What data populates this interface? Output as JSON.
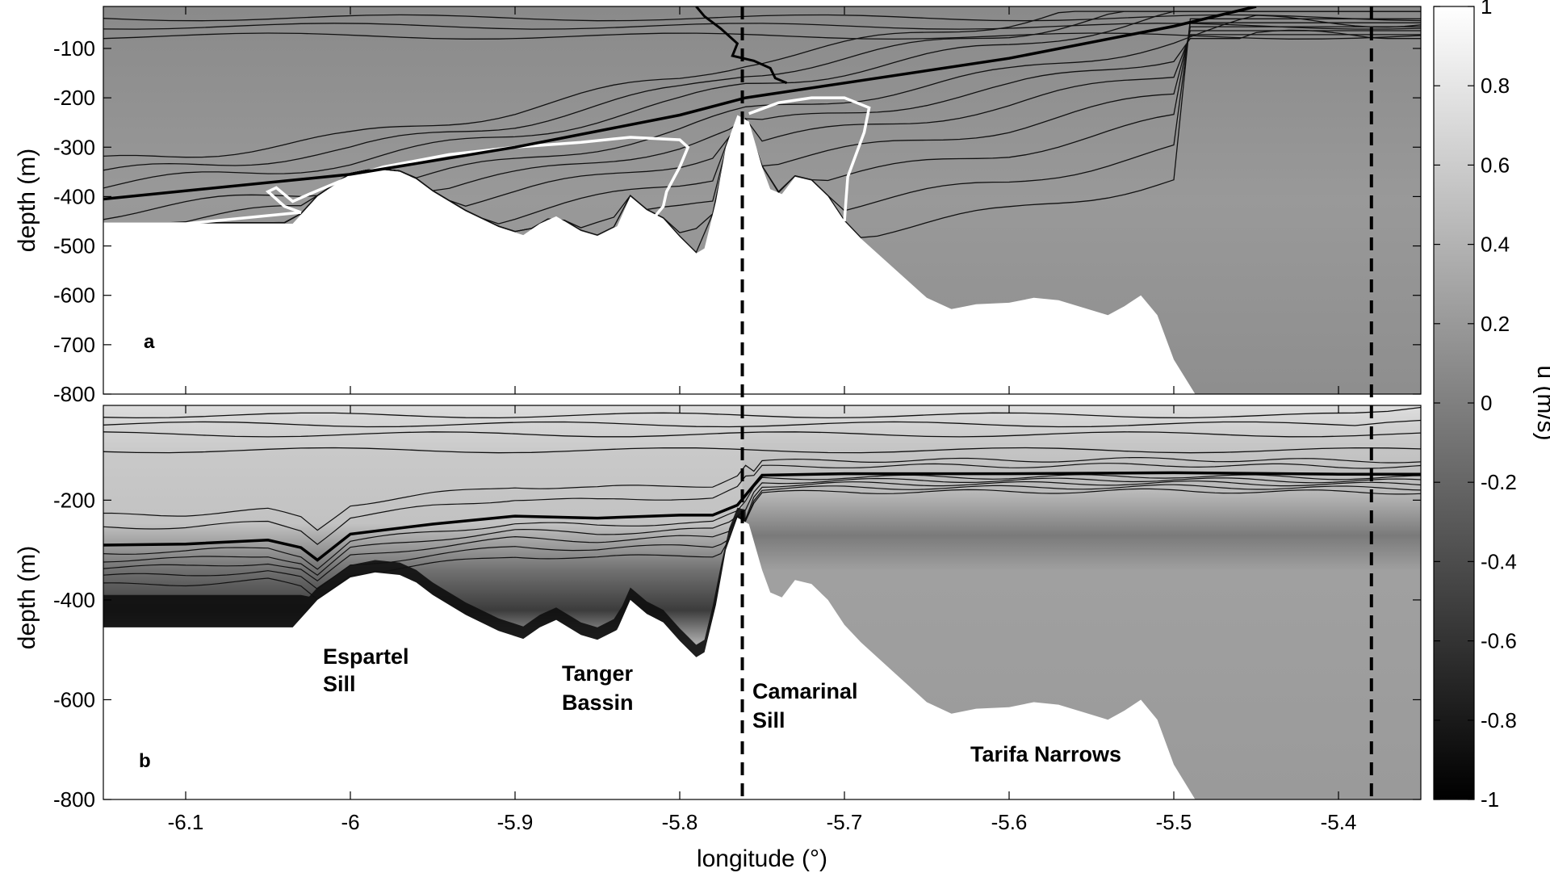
{
  "chart_data": {
    "type": "heatmap",
    "xlabel": "longitude (°)",
    "xlim": [
      -6.15,
      -5.35
    ],
    "xticks": [
      -6.1,
      -6,
      -5.9,
      -5.8,
      -5.7,
      -5.6,
      -5.5,
      -5.4
    ],
    "xtick_labels": [
      "-6.1",
      "-6",
      "-5.9",
      "-5.8",
      "-5.7",
      "-5.6",
      "-5.5",
      "-5.4"
    ],
    "colorbar": {
      "label": "u (m/s)",
      "range": [
        -1,
        1
      ],
      "ticks": [
        1,
        0.8,
        0.6,
        0.4,
        0.2,
        0,
        -0.2,
        -0.4,
        -0.6,
        -0.8,
        -1
      ],
      "tick_labels": [
        "1",
        "0.8",
        "0.6",
        "0.4",
        "0.2",
        "0",
        "-0.2",
        "-0.4",
        "-0.6",
        "-0.8",
        "-1"
      ],
      "colormap": "gray"
    },
    "vertical_dashed_lines_lon": [
      -5.762,
      -5.38
    ],
    "bathymetry": {
      "lon": [
        -6.15,
        -6.035,
        -6.02,
        -6.0,
        -5.985,
        -5.97,
        -5.96,
        -5.95,
        -5.93,
        -5.91,
        -5.895,
        -5.885,
        -5.875,
        -5.86,
        -5.85,
        -5.838,
        -5.83,
        -5.82,
        -5.81,
        -5.8,
        -5.79,
        -5.785,
        -5.778,
        -5.772,
        -5.765,
        -5.758,
        -5.75,
        -5.745,
        -5.738,
        -5.73,
        -5.72,
        -5.71,
        -5.7,
        -5.69,
        -5.67,
        -5.65,
        -5.635,
        -5.62,
        -5.6,
        -5.585,
        -5.57,
        -5.555,
        -5.54,
        -5.53,
        -5.52,
        -5.51,
        -5.5,
        -5.487
      ],
      "depth": [
        -455,
        -455,
        -400,
        -355,
        -345,
        -350,
        -365,
        -390,
        -430,
        -462,
        -478,
        -455,
        -440,
        -470,
        -480,
        -460,
        -400,
        -428,
        -445,
        -482,
        -515,
        -505,
        -410,
        -300,
        -235,
        -248,
        -340,
        -385,
        -395,
        -360,
        -368,
        -400,
        -450,
        -485,
        -545,
        -605,
        -628,
        -618,
        -615,
        -605,
        -610,
        -625,
        -640,
        -622,
        -600,
        -640,
        -730,
        -800
      ]
    },
    "panels": [
      {
        "letter": "a",
        "ylabel": "depth (m)",
        "ylim": [
          -800,
          -15
        ],
        "yticks": [
          -100,
          -200,
          -300,
          -400,
          -500,
          -600,
          -700,
          -800
        ],
        "ytick_labels": [
          "-100",
          "-200",
          "-300",
          "-400",
          "-500",
          "-600",
          "-700",
          "-800"
        ],
        "bathymetry_left_lon": -6.15,
        "thick_interface": {
          "lon": [
            -6.15,
            -6.0,
            -5.9,
            -5.8,
            -5.76,
            -5.7,
            -5.6,
            -5.5,
            -5.45
          ],
          "depth": [
            -405,
            -355,
            -300,
            -235,
            -200,
            -170,
            -120,
            -55,
            -15
          ]
        },
        "white_contours": [
          {
            "lon": [
              -6.15,
              -6.1,
              -6.03,
              -6.04,
              -6.05,
              -6.045,
              -6.035,
              -6.025,
              -6.0,
              -5.98,
              -5.94,
              -5.9,
              -5.86,
              -5.83,
              -5.8,
              -5.795,
              -5.8,
              -5.808,
              -5.81,
              -5.82
            ],
            "depth": [
              -455,
              -455,
              -432,
              -420,
              -390,
              -382,
              -410,
              -395,
              -360,
              -340,
              -315,
              -300,
              -290,
              -280,
              -285,
              -300,
              -340,
              -390,
              -420,
              -460
            ]
          },
          {
            "lon": [
              -5.758,
              -5.74,
              -5.72,
              -5.7,
              -5.685,
              -5.688,
              -5.698,
              -5.7
            ],
            "depth": [
              -232,
              -210,
              -200,
              -200,
              -220,
              -270,
              -360,
              -450
            ]
          }
        ]
      },
      {
        "letter": "b",
        "ylabel": "depth (m)",
        "ylim": [
          -800,
          -10
        ],
        "yticks": [
          -200,
          -400,
          -600,
          -800
        ],
        "ytick_labels": [
          "-200",
          "-400",
          "-600",
          "-800"
        ],
        "bathymetry_left_lon": -6.15,
        "thick_interface": {
          "lon": [
            -6.15,
            -6.1,
            -6.05,
            -6.03,
            -6.02,
            -6.0,
            -5.95,
            -5.9,
            -5.85,
            -5.8,
            -5.78,
            -5.765,
            -5.75,
            -5.7,
            -5.6,
            -5.5,
            -5.4,
            -5.35
          ],
          "depth": [
            -290,
            -288,
            -280,
            -295,
            -320,
            -268,
            -248,
            -232,
            -236,
            -230,
            -230,
            -210,
            -150,
            -147,
            -147,
            -145,
            -148,
            -148
          ]
        }
      }
    ],
    "annotations": [
      "Espartel Sill",
      "Tanger Bassin",
      "Camarinal Sill",
      "Tarifa Narrows"
    ]
  }
}
